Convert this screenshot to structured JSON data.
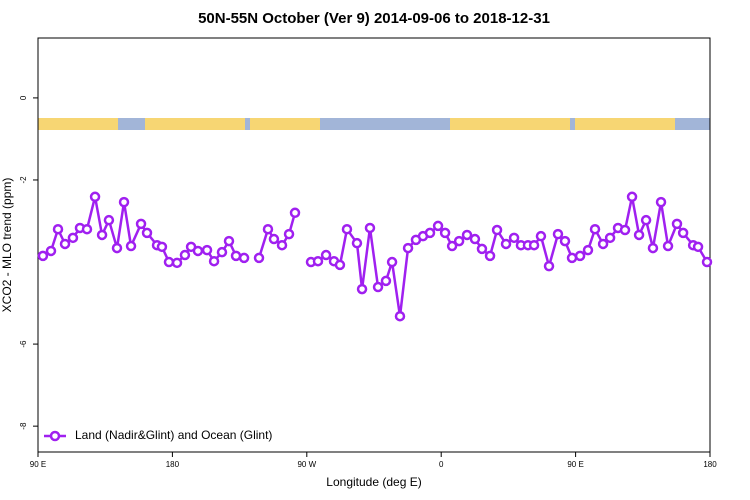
{
  "chart_data": {
    "type": "line-points",
    "title": "50N-55N October (Ver 9)   2014-09-06 to 2018-12-31",
    "x_label": "Longitude (deg E)",
    "y_label": "XCO2 - MLO trend (ppm)",
    "xlim": [
      90,
      540
    ],
    "ylim": [
      -8.63,
      1.46
    ],
    "xticks": [
      {
        "value": 90,
        "label": "90 E"
      },
      180,
      {
        "value": 270,
        "label": "90 W"
      },
      {
        "value": 360,
        "label": "0"
      },
      {
        "value": 450,
        "label": "90 E"
      },
      {
        "value": 540,
        "label": "180"
      }
    ],
    "yticks": [
      0,
      -2,
      -6,
      -8
    ],
    "legend": "bottom-left",
    "x": [
      93.3,
      98.7,
      103.4,
      108.1,
      113.4,
      118.1,
      122.8,
      128.2,
      132.9,
      137.5,
      142.9,
      147.6,
      152.3,
      159.0,
      163.0,
      169.7,
      173.0,
      177.7,
      183.1,
      188.4,
      192.5,
      197.1,
      203.2,
      207.9,
      213.2,
      217.9,
      222.6,
      228.0,
      null,
      238.0,
      244.0,
      248.0,
      253.4,
      258.1,
      262.1,
      null,
      272.8,
      277.5,
      282.9,
      288.2,
      292.2,
      296.9,
      303.6,
      307.0,
      312.3,
      317.7,
      323.0,
      327.1,
      332.4,
      337.8,
      343.1,
      347.8,
      352.5,
      357.9,
      362.6,
      367.3,
      372.0,
      377.3,
      382.6,
      387.3,
      392.7,
      397.4,
      403.4,
      408.8,
      413.4,
      418.1,
      422.2,
      426.8,
      432.2,
      438.2,
      442.9,
      447.6,
      453.0,
      458.3,
      463.0,
      468.4,
      473.1,
      478.4,
      483.1,
      487.8,
      492.5,
      497.2,
      501.8,
      507.2,
      511.9,
      517.9,
      522.0,
      528.7,
      532.0,
      538.0
    ],
    "series": [
      {
        "name": "Land (Nadir&Glint) and Ocean (Glint)",
        "color": "#a020f0",
        "values": [
          -3.85,
          -3.73,
          -3.2,
          -3.56,
          -3.41,
          -3.17,
          -3.2,
          -2.41,
          -3.34,
          -2.98,
          -3.66,
          -2.54,
          -3.61,
          -3.07,
          -3.29,
          -3.59,
          -3.63,
          -4.0,
          -4.02,
          -3.83,
          -3.63,
          -3.73,
          -3.71,
          -3.98,
          -3.76,
          -3.49,
          -3.85,
          -3.9,
          null,
          -3.9,
          -3.2,
          -3.44,
          -3.59,
          -3.32,
          -2.8,
          null,
          -4.0,
          -3.98,
          -3.83,
          -3.98,
          -4.07,
          -3.2,
          -3.54,
          -4.66,
          -3.17,
          -4.61,
          -4.46,
          -4.0,
          -5.32,
          -3.66,
          -3.46,
          -3.37,
          -3.29,
          -3.12,
          -3.29,
          -3.61,
          -3.49,
          -3.34,
          -3.44,
          -3.68,
          -3.85,
          -3.22,
          -3.56,
          -3.41,
          -3.59,
          -3.59,
          -3.59,
          -3.37,
          -4.1,
          -3.32,
          -3.49,
          -3.9,
          -3.85,
          -3.71,
          -3.2,
          -3.56,
          -3.41,
          -3.17,
          -3.22,
          -2.41,
          -3.34,
          -2.98,
          -3.66,
          -2.54,
          -3.61,
          -3.07,
          -3.29,
          -3.59,
          -3.63,
          -4.0
        ]
      }
    ]
  }
}
